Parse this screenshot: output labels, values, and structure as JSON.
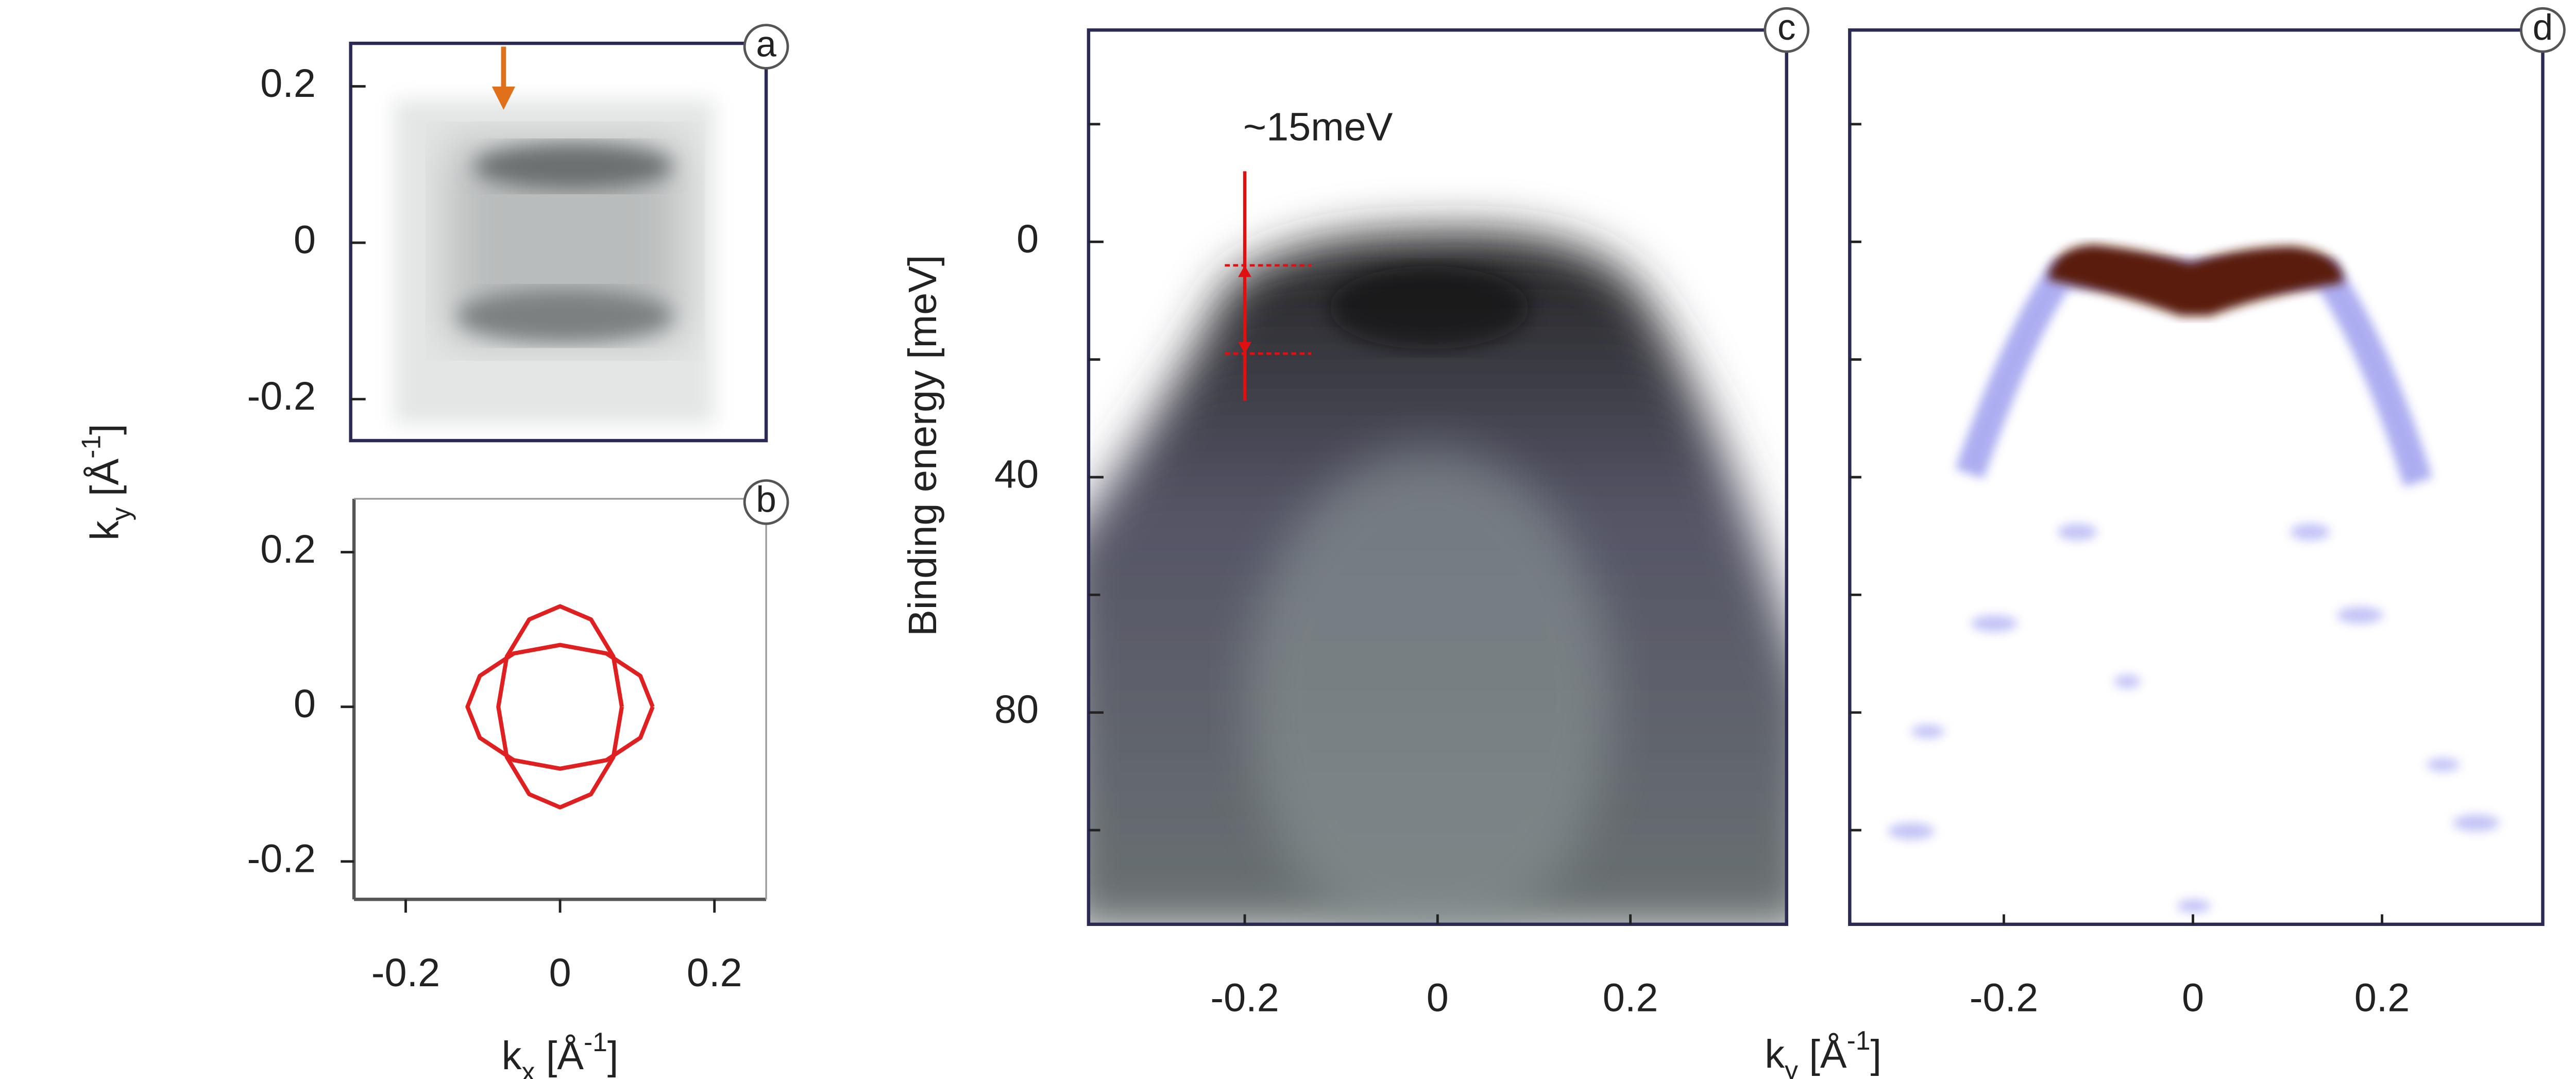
{
  "chart_data": [
    {
      "type": "image",
      "panel": "a",
      "ylim": [
        -0.253,
        0.255
      ],
      "yticks": [
        0.2,
        0,
        -0.2
      ],
      "ylabel": {
        "main": "k",
        "sub": "y",
        "unit": " [Å",
        "sup": "-1",
        "end": "]"
      }
    },
    {
      "type": "line",
      "panel": "b",
      "xlim": [
        -0.267,
        0.267
      ],
      "ylim": [
        -0.249,
        0.269
      ],
      "xticks": [
        -0.2,
        0,
        0.2
      ],
      "yticks": [
        0.2,
        0,
        -0.2
      ],
      "xlabel": {
        "main": "k",
        "sub": "x",
        "unit": " [Å",
        "sup": "-1",
        "end": "]"
      },
      "series": [
        {
          "color": "#e02020",
          "x": [
            0.12,
            0.104,
            0.06,
            0,
            -0.06,
            -0.104,
            -0.12,
            -0.104,
            -0.06,
            0,
            0.06,
            0.104,
            0.12
          ],
          "values": [
            0,
            0.04,
            0.069,
            0.08,
            0.069,
            0.04,
            0,
            -0.04,
            -0.069,
            -0.08,
            -0.069,
            -0.04,
            0
          ]
        },
        {
          "color": "#e02020",
          "x": [
            0.08,
            0.069,
            0.04,
            0,
            -0.04,
            -0.069,
            -0.08,
            -0.069,
            -0.04,
            0,
            0.04,
            0.069,
            0.08
          ],
          "values": [
            0,
            0.065,
            0.113,
            0.13,
            0.113,
            0.065,
            0,
            -0.065,
            -0.113,
            -0.13,
            -0.113,
            -0.065,
            0
          ]
        }
      ]
    },
    {
      "type": "image",
      "panel": "c",
      "xlim": [
        -0.362,
        0.362
      ],
      "ylim": [
        -36,
        116
      ],
      "y_inverted": true,
      "xticks": [
        -0.2,
        0,
        0.2
      ],
      "yticks": [
        0,
        40,
        80
      ],
      "minor_yticks": [
        -20,
        20,
        60,
        100
      ],
      "ylabel": "Binding energy [meV]",
      "annotation": {
        "text": "~15meV",
        "x": -0.2,
        "y": [
          4,
          19
        ],
        "bar_y": [
          -12,
          27
        ],
        "color": "#e01010"
      }
    },
    {
      "type": "image",
      "panel": "d",
      "xlim": [
        -0.363,
        0.37
      ],
      "ylim": [
        -36,
        116
      ],
      "y_inverted": true,
      "xticks": [
        -0.2,
        0,
        0.2
      ],
      "minor_yticks": [
        -20,
        0,
        20,
        40,
        60,
        80,
        100
      ],
      "xlabel": {
        "main": "k",
        "sub": "y",
        "unit": " [Å",
        "sup": "-1",
        "end": "]"
      }
    }
  ]
}
